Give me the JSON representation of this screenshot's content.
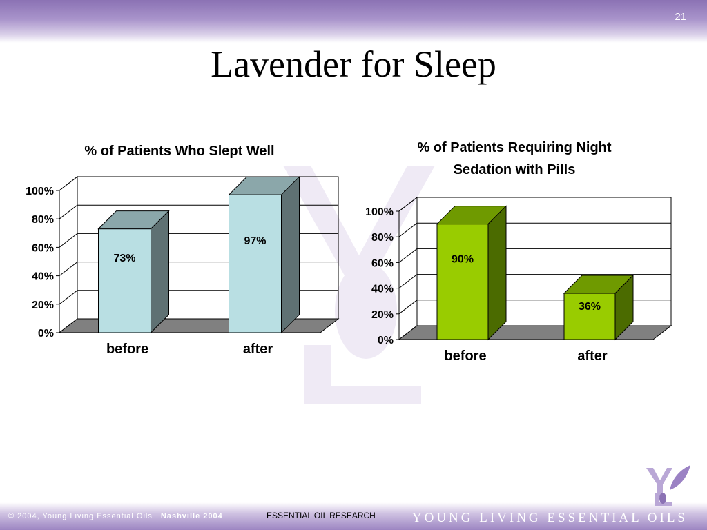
{
  "slide": {
    "number": "21",
    "title": "Lavender for Sleep"
  },
  "footer": {
    "copyright": "© 2004, Young Living Essential Oils",
    "place": "Nashville 2004",
    "center": "ESSENTIAL OIL RESEARCH",
    "brand": "YOUNG LIVING ESSENTIAL OILS"
  },
  "colors": {
    "chart1_bar_front": "#b9dfe3",
    "chart1_bar_top": "#8ba7aa",
    "chart1_bar_side": "#5f7173",
    "chart2_bar_front": "#99cc00",
    "chart2_bar_top": "#6f9a00",
    "chart2_bar_side": "#4b6b00",
    "floor": "#808080",
    "brand_purple": "#8b72b4"
  },
  "chart_data": [
    {
      "type": "bar",
      "title": "% of Patients Who Slept Well",
      "categories": [
        "before",
        "after"
      ],
      "values": [
        73,
        97
      ],
      "value_labels": [
        "73%",
        "97%"
      ],
      "ylim": [
        0,
        100
      ],
      "yticks": [
        "0%",
        "20%",
        "40%",
        "60%",
        "80%",
        "100%"
      ],
      "grid": true,
      "style": "3d"
    },
    {
      "type": "bar",
      "title": "% of Patients Requiring Night Sedation with Pills",
      "title_lines": [
        "% of Patients Requiring Night",
        "Sedation with Pills"
      ],
      "categories": [
        "before",
        "after"
      ],
      "values": [
        90,
        36
      ],
      "value_labels": [
        "90%",
        "36%"
      ],
      "ylim": [
        0,
        100
      ],
      "yticks": [
        "0%",
        "20%",
        "40%",
        "60%",
        "80%",
        "100%"
      ],
      "grid": true,
      "style": "3d"
    }
  ]
}
